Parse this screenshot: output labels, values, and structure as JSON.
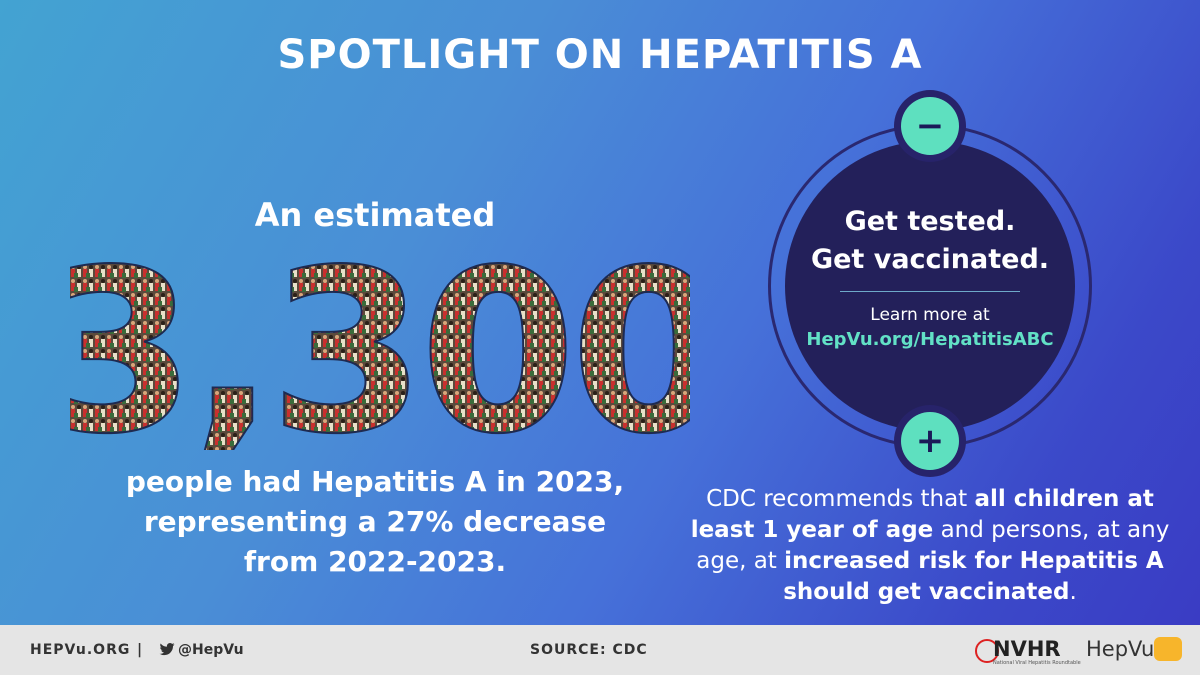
{
  "title": "SPOTLIGHT ON HEPATITIS A",
  "left": {
    "lead": "An estimated",
    "big_number": "3,300",
    "description_lines": [
      "people had Hepatitis A in 2023,",
      "representing a 27% decrease",
      "from 2022-2023."
    ]
  },
  "circle": {
    "minus_symbol": "−",
    "plus_symbol": "+",
    "line1": "Get tested.",
    "line2": "Get vaccinated.",
    "learn_more": "Learn more at",
    "link": "HepVu.org/HepatitisABC"
  },
  "cdc": {
    "p1": "CDC recommends that ",
    "b1": "all children at least 1 year of age",
    "p2": " and persons, at any age, at ",
    "b2": "increased risk for Hepatitis A should get vaccinated",
    "p3": "."
  },
  "footer": {
    "site": "HEPVu.ORG",
    "separator": "|",
    "twitter_icon": "twitter-bird-icon",
    "handle": "@HepVu",
    "source": "SOURCE: CDC",
    "nvhr_logo": "NVHR",
    "nvhr_tagline": "National Viral Hepatitis Roundtable",
    "hepvu_logo": "HepVu"
  },
  "colors": {
    "accent_mint": "#5ee0bf",
    "circle_navy": "#23205a",
    "link_teal": "#62e1c6",
    "footer_bg": "#e5e5e5"
  }
}
